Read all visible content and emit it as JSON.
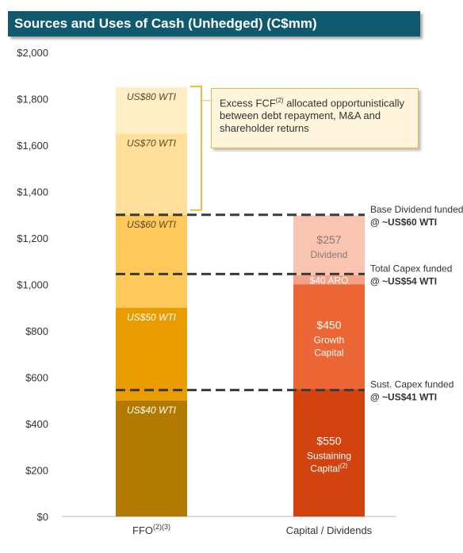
{
  "title": "Sources and Uses of Cash (Unhedged) (C$mm)",
  "chart_data": {
    "type": "bar",
    "subtype": "stacked",
    "categories": [
      "FFO(2)(3)",
      "Capital / Dividends"
    ],
    "category_labels": [
      {
        "text": "FFO",
        "sup": "(2)(3)"
      },
      {
        "text": "Capital / Dividends",
        "sup": ""
      }
    ],
    "ylim": [
      0,
      2000
    ],
    "yticks": [
      0,
      200,
      400,
      600,
      800,
      1000,
      1200,
      1400,
      1600,
      1800,
      2000
    ],
    "ytick_labels": [
      "$0",
      "$200",
      "$400",
      "$600",
      "$800",
      "$1,000",
      "$1,200",
      "$1,400",
      "$1,600",
      "$1,800",
      "$2,000"
    ],
    "sources": [
      {
        "label": "US$40 WTI",
        "from": 0,
        "to": 500,
        "color": "#b37a00"
      },
      {
        "label": "US$50 WTI",
        "from": 500,
        "to": 900,
        "color": "#e89c00"
      },
      {
        "label": "US$60 WTI",
        "from": 900,
        "to": 1300,
        "color": "#ffc85a"
      },
      {
        "label": "US$70 WTI",
        "from": 1300,
        "to": 1650,
        "color": "#ffdf99"
      },
      {
        "label": "US$80 WTI",
        "from": 1650,
        "to": 1850,
        "color": "#ffedc6"
      }
    ],
    "uses": [
      {
        "value": 550,
        "label_value": "$550",
        "label_lines": [
          "Sustaining",
          "Capital"
        ],
        "sup": "(2)",
        "color": "#d2430f",
        "text_color": "#ffffff"
      },
      {
        "value": 450,
        "label_value": "$450",
        "label_lines": [
          "Growth",
          "Capital"
        ],
        "sup": "",
        "color": "#ec6535",
        "text_color": "#ffffff"
      },
      {
        "value": 40,
        "label_value": "$40 ARO",
        "label_lines": [],
        "sup": "",
        "color": "#f6a287",
        "text_color": "#ffffff"
      },
      {
        "value": 257,
        "label_value": "$257",
        "label_lines": [
          "Dividend"
        ],
        "sup": "",
        "color": "#f9c4b0",
        "text_color": "#8a7a74"
      }
    ],
    "reference_lines": [
      {
        "y": 1300,
        "line1": "Base Dividend funded",
        "line2": "@ ~US$60 WTI"
      },
      {
        "y": 1045,
        "line1": "Total Capex funded",
        "line2": "@ ~US$54 WTI"
      },
      {
        "y": 545,
        "line1": "Sust. Capex funded",
        "line2": "@ ~US$41 WTI"
      }
    ],
    "bracket_range": [
      1300,
      1850
    ],
    "callout": {
      "text_before": "Excess FCF",
      "sup": "(2)",
      "text_after": " allocated opportunistically between debt repayment, M&A and shareholder returns"
    }
  }
}
